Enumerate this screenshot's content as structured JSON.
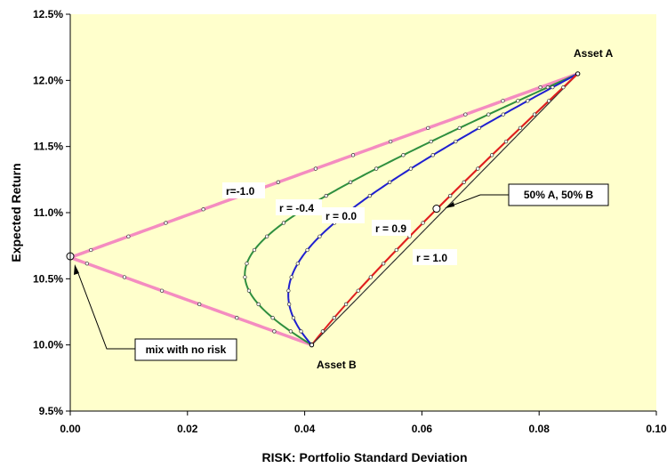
{
  "chart_data": {
    "type": "line",
    "title": "",
    "xlabel": "RISK:  Portfolio Standard Deviation",
    "ylabel": "Expected Return",
    "xlim": [
      0,
      0.1
    ],
    "ylim": [
      9.5,
      12.5
    ],
    "x_ticks": [
      "0.00",
      "0.02",
      "0.04",
      "0.06",
      "0.08",
      "0.10"
    ],
    "y_ticks": [
      "9.5%",
      "10.0%",
      "10.5%",
      "11.0%",
      "11.5%",
      "12.0%",
      "12.5%"
    ],
    "grid": false,
    "legend": "none",
    "plot_background": "#ffffcc",
    "asset_a": {
      "label": "Asset A",
      "sd": 0.0866,
      "ret": 12.05
    },
    "asset_b": {
      "label": "Asset B",
      "sd": 0.0412,
      "ret": 10.0
    },
    "series": [
      {
        "label": "r=-1.0",
        "rho": -1.0,
        "color": "#f48cc0"
      },
      {
        "label": "r = -0.4",
        "rho": -0.4,
        "color": "#2f8f3f"
      },
      {
        "label": "r = 0.0",
        "rho": 0.0,
        "color": "#1f1fd0"
      },
      {
        "label": "r = 0.9",
        "rho": 0.9,
        "color": "#e02020"
      },
      {
        "label": "r = 1.0",
        "rho": 1.0,
        "color": "#333333"
      }
    ],
    "annotations": [
      {
        "text": "50% A, 50% B",
        "point": [
          0.0625,
          11.03
        ]
      },
      {
        "text": "mix with no risk",
        "point": [
          0.0,
          10.67
        ]
      }
    ]
  }
}
